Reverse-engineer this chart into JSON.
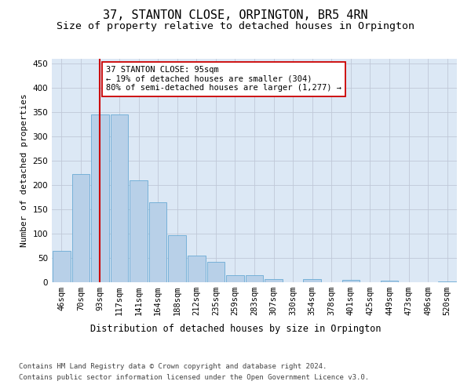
{
  "title": "37, STANTON CLOSE, ORPINGTON, BR5 4RN",
  "subtitle": "Size of property relative to detached houses in Orpington",
  "xlabel": "Distribution of detached houses by size in Orpington",
  "ylabel": "Number of detached properties",
  "categories": [
    "46sqm",
    "70sqm",
    "93sqm",
    "117sqm",
    "141sqm",
    "164sqm",
    "188sqm",
    "212sqm",
    "235sqm",
    "259sqm",
    "283sqm",
    "307sqm",
    "330sqm",
    "354sqm",
    "378sqm",
    "401sqm",
    "425sqm",
    "449sqm",
    "473sqm",
    "496sqm",
    "520sqm"
  ],
  "values": [
    65,
    222,
    345,
    345,
    210,
    165,
    97,
    55,
    42,
    14,
    14,
    7,
    0,
    6,
    0,
    5,
    0,
    4,
    0,
    0,
    2
  ],
  "bar_color": "#b8d0e8",
  "bar_edge_color": "#6aaad4",
  "vline_x": 2,
  "vline_color": "#cc0000",
  "annotation_text": "37 STANTON CLOSE: 95sqm\n← 19% of detached houses are smaller (304)\n80% of semi-detached houses are larger (1,277) →",
  "annotation_box_color": "#ffffff",
  "annotation_box_edge": "#cc0000",
  "ylim": [
    0,
    460
  ],
  "yticks": [
    0,
    50,
    100,
    150,
    200,
    250,
    300,
    350,
    400,
    450
  ],
  "background_color": "#ffffff",
  "plot_bg_color": "#dce8f5",
  "grid_color": "#c0c8d8",
  "footer_line1": "Contains HM Land Registry data © Crown copyright and database right 2024.",
  "footer_line2": "Contains public sector information licensed under the Open Government Licence v3.0.",
  "title_fontsize": 11,
  "subtitle_fontsize": 9.5,
  "ylabel_fontsize": 8,
  "xlabel_fontsize": 8.5,
  "tick_fontsize": 7.5,
  "annotation_fontsize": 7.5,
  "footer_fontsize": 6.5
}
